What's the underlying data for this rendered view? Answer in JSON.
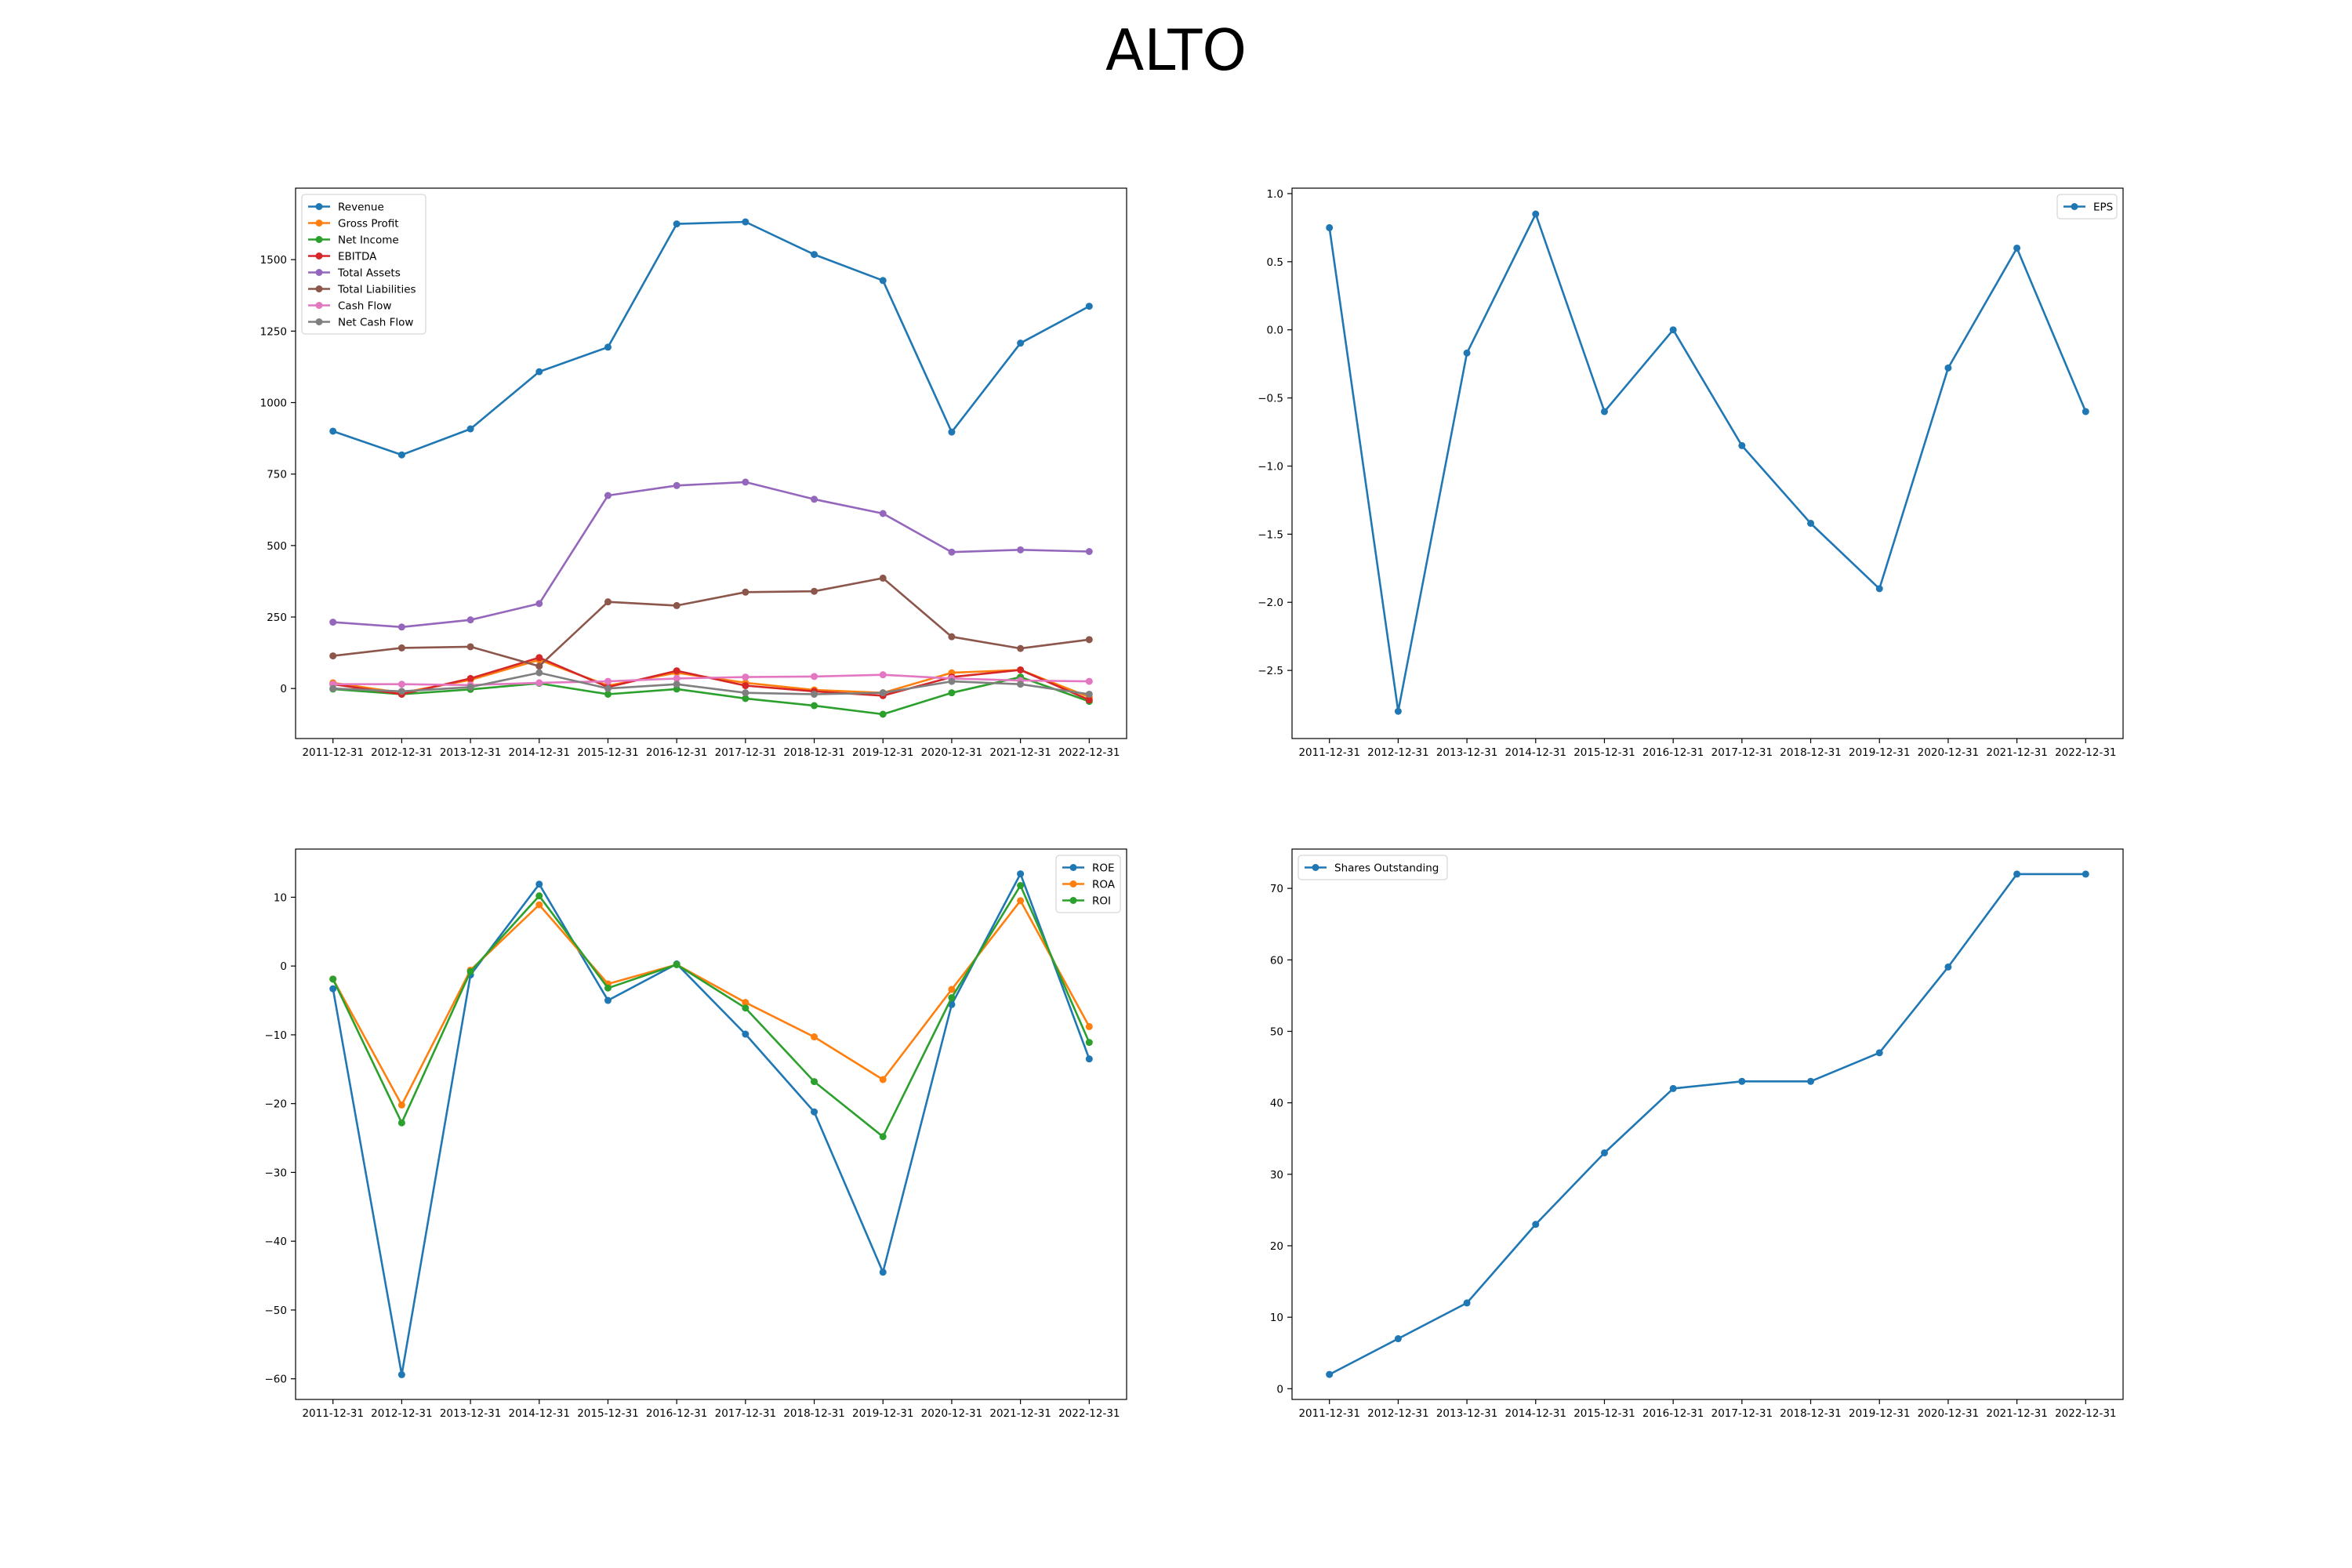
{
  "title": "ALTO",
  "chart_data": [
    {
      "type": "line",
      "legend_position": "upper-left",
      "grid": false,
      "x": [
        "2011-12-31",
        "2012-12-31",
        "2013-12-31",
        "2014-12-31",
        "2015-12-31",
        "2016-12-31",
        "2017-12-31",
        "2018-12-31",
        "2019-12-31",
        "2020-12-31",
        "2021-12-31",
        "2022-12-31"
      ],
      "ylim": [
        -175,
        1750
      ],
      "yticks": [
        0,
        250,
        500,
        750,
        1000,
        1250,
        1500
      ],
      "series": [
        {
          "name": "Revenue",
          "color": "#1f77b4",
          "values": [
            900,
            817,
            908,
            1108,
            1194,
            1625,
            1632,
            1518,
            1427,
            897,
            1208,
            1337
          ]
        },
        {
          "name": "Gross Profit",
          "color": "#ff7f0e",
          "values": [
            20,
            -15,
            30,
            100,
            10,
            55,
            20,
            -5,
            -15,
            55,
            65,
            -30
          ]
        },
        {
          "name": "Net Income",
          "color": "#2ca02c",
          "values": [
            -2,
            -20,
            -3,
            18,
            -20,
            -2,
            -35,
            -60,
            -90,
            -15,
            40,
            -45
          ]
        },
        {
          "name": "EBITDA",
          "color": "#d62728",
          "values": [
            15,
            -20,
            35,
            108,
            5,
            62,
            10,
            -10,
            -25,
            40,
            65,
            -40
          ]
        },
        {
          "name": "Total Assets",
          "color": "#9467bd",
          "values": [
            232,
            215,
            240,
            297,
            675,
            710,
            722,
            662,
            612,
            477,
            485,
            479
          ]
        },
        {
          "name": "Total Liabilities",
          "color": "#8c564b",
          "values": [
            114,
            142,
            146,
            78,
            303,
            290,
            337,
            340,
            386,
            181,
            140,
            171
          ]
        },
        {
          "name": "Cash Flow",
          "color": "#e377c2",
          "values": [
            15,
            15,
            12,
            20,
            25,
            35,
            40,
            42,
            48,
            35,
            28,
            25
          ]
        },
        {
          "name": "Net Cash Flow",
          "color": "#7f7f7f",
          "values": [
            0,
            -10,
            5,
            55,
            0,
            15,
            -15,
            -20,
            -15,
            25,
            15,
            -20
          ]
        }
      ]
    },
    {
      "type": "line",
      "legend_position": "upper-right",
      "grid": false,
      "x": [
        "2011-12-31",
        "2012-12-31",
        "2013-12-31",
        "2014-12-31",
        "2015-12-31",
        "2016-12-31",
        "2017-12-31",
        "2018-12-31",
        "2019-12-31",
        "2020-12-31",
        "2021-12-31",
        "2022-12-31"
      ],
      "ylim": [
        -3.0,
        1.04
      ],
      "yticks": [
        -2.5,
        -2.0,
        -1.5,
        -1.0,
        -0.5,
        0.0,
        0.5,
        1.0
      ],
      "series": [
        {
          "name": "EPS",
          "color": "#1f77b4",
          "values": [
            0.75,
            -2.8,
            -0.17,
            0.85,
            -0.6,
            0.0,
            -0.85,
            -1.42,
            -1.9,
            -0.28,
            0.6,
            -0.6
          ]
        }
      ]
    },
    {
      "type": "line",
      "legend_position": "upper-right",
      "grid": false,
      "x": [
        "2011-12-31",
        "2012-12-31",
        "2013-12-31",
        "2014-12-31",
        "2015-12-31",
        "2016-12-31",
        "2017-12-31",
        "2018-12-31",
        "2019-12-31",
        "2020-12-31",
        "2021-12-31",
        "2022-12-31"
      ],
      "ylim": [
        -63,
        17
      ],
      "yticks": [
        -60,
        -50,
        -40,
        -30,
        -20,
        -10,
        0,
        10
      ],
      "series": [
        {
          "name": "ROE",
          "color": "#1f77b4",
          "values": [
            -3.3,
            -59.4,
            -1.3,
            11.9,
            -5.0,
            0.3,
            -9.9,
            -21.2,
            -44.5,
            -5.6,
            13.4,
            -13.5
          ]
        },
        {
          "name": "ROA",
          "color": "#ff7f0e",
          "values": [
            -1.9,
            -20.2,
            -0.6,
            8.9,
            -2.6,
            0.2,
            -5.3,
            -10.3,
            -16.5,
            -3.4,
            9.5,
            -8.8
          ]
        },
        {
          "name": "ROI",
          "color": "#2ca02c",
          "values": [
            -1.9,
            -22.8,
            -0.8,
            10.2,
            -3.2,
            0.2,
            -6.1,
            -16.8,
            -24.8,
            -4.6,
            11.7,
            -11.1
          ]
        }
      ]
    },
    {
      "type": "line",
      "legend_position": "upper-left",
      "grid": false,
      "x": [
        "2011-12-31",
        "2012-12-31",
        "2013-12-31",
        "2014-12-31",
        "2015-12-31",
        "2016-12-31",
        "2017-12-31",
        "2018-12-31",
        "2019-12-31",
        "2020-12-31",
        "2021-12-31",
        "2022-12-31"
      ],
      "ylim": [
        -1.5,
        75.5
      ],
      "yticks": [
        0,
        10,
        20,
        30,
        40,
        50,
        60,
        70
      ],
      "series": [
        {
          "name": "Shares Outstanding",
          "color": "#1f77b4",
          "values": [
            2,
            7,
            12,
            23,
            33,
            42,
            43,
            43,
            47,
            59,
            72,
            72
          ]
        }
      ]
    }
  ]
}
